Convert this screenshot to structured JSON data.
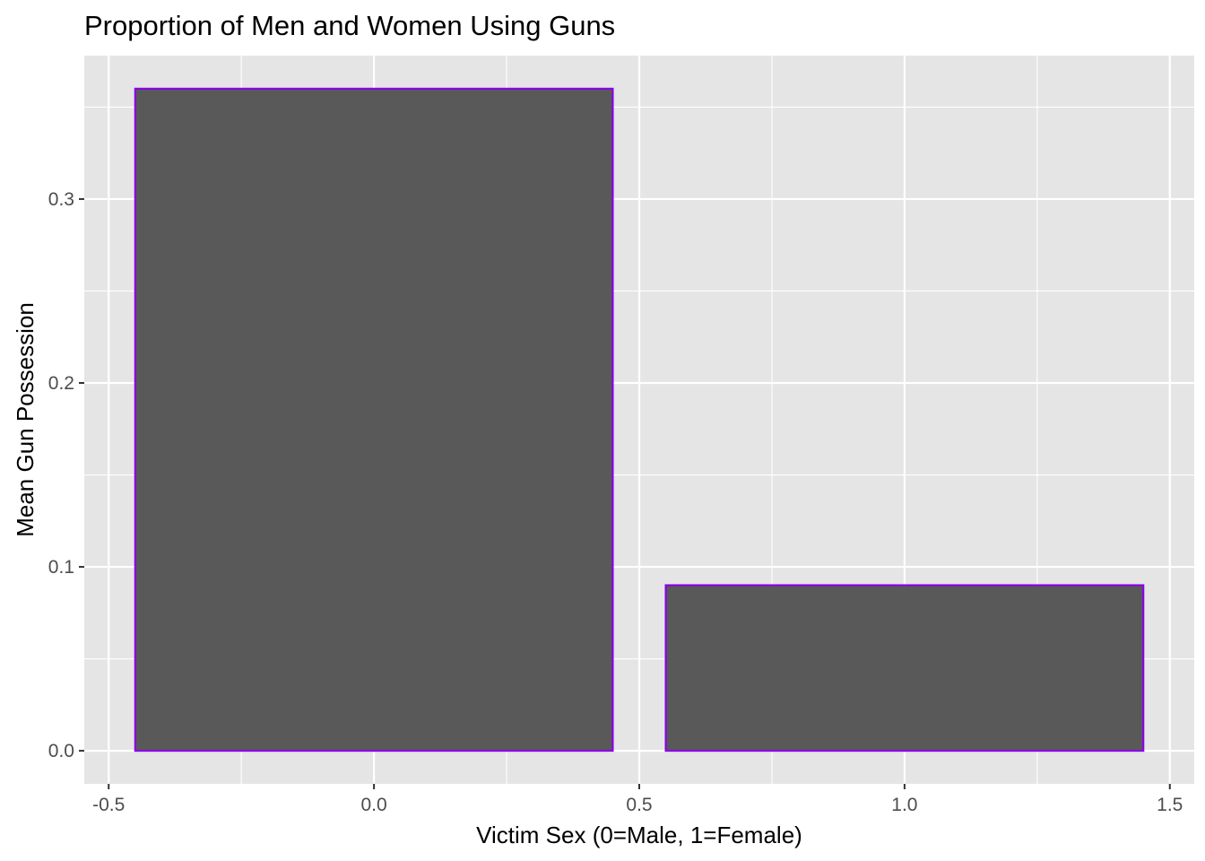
{
  "chart_data": {
    "type": "bar",
    "title": "Proportion of Men and Women Using Guns",
    "xlabel": "Victim Sex (0=Male, 1=Female)",
    "ylabel": "Mean Gun Possession",
    "x": [
      0,
      1
    ],
    "values": [
      0.36,
      0.09
    ],
    "bar_width": 0.9,
    "xlim": [
      -0.546,
      1.546
    ],
    "ylim": [
      -0.018,
      0.378
    ],
    "x_ticks": [
      -0.5,
      0.0,
      0.5,
      1.0,
      1.5
    ],
    "x_tick_labels": [
      "-0.5",
      "0.0",
      "0.5",
      "1.0",
      "1.5"
    ],
    "y_ticks": [
      0.0,
      0.1,
      0.2,
      0.3
    ],
    "y_tick_labels": [
      "0.0",
      "0.1",
      "0.2",
      "0.3"
    ],
    "grid": true,
    "legend": "none",
    "colors": {
      "panel_background": "#e5e5e5",
      "grid_line": "#ffffff",
      "bar_fill": "#595959",
      "bar_outline": "#8a00e6",
      "tick_label": "#4d4d4d",
      "tick_mark": "#333333",
      "text": "#000000"
    }
  }
}
